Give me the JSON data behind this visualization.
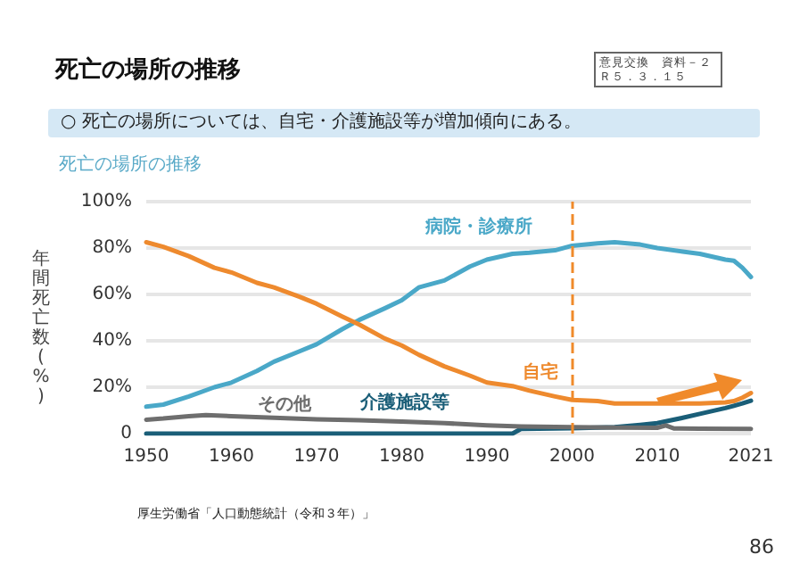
{
  "chart_data": {
    "type": "line",
    "title": "死亡の場所の推移",
    "subtitle": "○ 死亡の場所については、自宅・介護施設等が増加傾向にある。",
    "annotations": [
      "意見交換　資料－２",
      "Ｒ５．３．１５",
      "死亡の場所の推移",
      "厚生労働省「人口動態統計（令和３年）」",
      "86"
    ],
    "ylabel": "年間死亡数(%)",
    "xlim": [
      1950,
      2021
    ],
    "xticks": [
      1950,
      1960,
      1970,
      1980,
      1990,
      2000,
      2010,
      2021
    ],
    "ylim": [
      0,
      100
    ],
    "yticks": [
      0,
      {
        "value": 20,
        "label": "20%"
      },
      {
        "value": 40,
        "label": "40%"
      },
      {
        "value": 60,
        "label": "60%"
      },
      {
        "value": 80,
        "label": "80%"
      },
      {
        "value": 100,
        "label": "100%"
      }
    ],
    "grid": "y",
    "legend": false,
    "marker": "none",
    "line_style": "solid",
    "ref_lines": [
      {
        "axis": "x",
        "value": 2000,
        "label": null,
        "color": "#f08a2a",
        "line_style": "dashed"
      }
    ],
    "series": [
      {
        "name": "病院・診療所",
        "color": "#4aa8c8",
        "x": [
          1950,
          1952,
          1955,
          1958,
          1960,
          1963,
          1965,
          1968,
          1970,
          1973,
          1975,
          1978,
          1980,
          1982,
          1985,
          1988,
          1990,
          1993,
          1995,
          1998,
          2000,
          2003,
          2005,
          2008,
          2010,
          2013,
          2015,
          2018,
          2019,
          2020,
          2021
        ],
        "values": [
          11.6,
          12.5,
          16,
          20,
          22,
          27,
          31,
          35.5,
          38.5,
          45,
          49,
          54,
          57.5,
          63,
          66,
          72,
          75,
          77.5,
          78,
          79,
          81,
          82,
          82.5,
          81.5,
          80,
          78.5,
          77.5,
          75,
          74.5,
          71.5,
          67.5
        ]
      },
      {
        "name": "自宅",
        "color": "#ee8a2e",
        "x": [
          1950,
          1952,
          1955,
          1958,
          1960,
          1963,
          1965,
          1968,
          1970,
          1973,
          1975,
          1978,
          1980,
          1982,
          1985,
          1988,
          1990,
          1993,
          1995,
          1998,
          2000,
          2003,
          2005,
          2008,
          2010,
          2013,
          2015,
          2018,
          2019,
          2020,
          2021
        ],
        "values": [
          82.5,
          80.5,
          76.5,
          71.5,
          69.5,
          65,
          63,
          59,
          56,
          50.5,
          47,
          41,
          38,
          34,
          29,
          25,
          22,
          20.5,
          18.5,
          16,
          14.5,
          14,
          13,
          13,
          13,
          13,
          13,
          13.5,
          14,
          15.5,
          17.5
        ]
      },
      {
        "name": "介護施設等",
        "color": "#1a5e78",
        "x": [
          1950,
          1960,
          1970,
          1980,
          1990,
          1993,
          1994,
          2000,
          2005,
          2008,
          2010,
          2013,
          2015,
          2018,
          2019,
          2020,
          2021
        ],
        "values": [
          0,
          0,
          0,
          0,
          0,
          0,
          2,
          2.3,
          2.8,
          3.8,
          4.5,
          6.8,
          8.5,
          11,
          12,
          13,
          14.2
        ]
      },
      {
        "name": "その他",
        "color": "#6e6e6e",
        "x": [
          1950,
          1952,
          1955,
          1957,
          1960,
          1965,
          1970,
          1975,
          1980,
          1985,
          1990,
          1994,
          2000,
          2005,
          2010,
          2011,
          2012,
          2015,
          2021
        ],
        "values": [
          6,
          6.5,
          7.5,
          8,
          7.5,
          6.8,
          6.2,
          5.8,
          5.2,
          4.5,
          3.6,
          3.1,
          2.8,
          2.6,
          2.5,
          3.5,
          2.2,
          2.1,
          2
        ]
      }
    ]
  }
}
